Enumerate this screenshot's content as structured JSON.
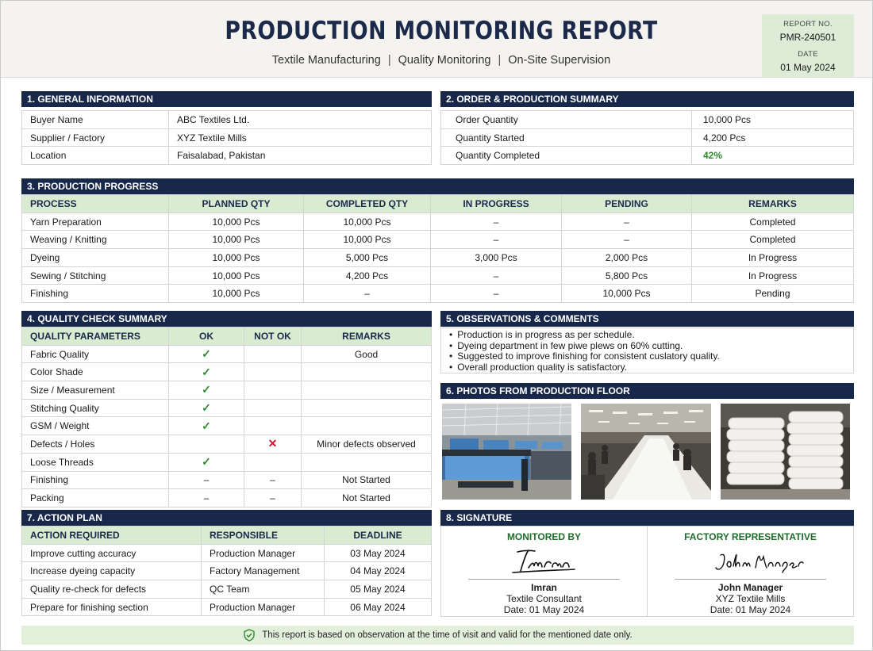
{
  "header": {
    "title": "PRODUCTION MONITORING REPORT",
    "subtitle_parts": [
      "Textile Manufacturing",
      "Quality Monitoring",
      "On-Site Supervision"
    ],
    "separator": "|",
    "report_no_label": "REPORT NO.",
    "report_no": "PMR-240501",
    "date_label": "DATE",
    "date": "01 May 2024"
  },
  "general": {
    "title": "1. GENERAL INFORMATION",
    "rows": [
      {
        "label": "Buyer Name",
        "value": "ABC Textiles Ltd."
      },
      {
        "label": "Supplier / Factory",
        "value": "XYZ Textile Mills"
      },
      {
        "label": "Location",
        "value": "Faisalabad, Pakistan"
      }
    ]
  },
  "order": {
    "title": "2. ORDER & PRODUCTION SUMMARY",
    "rows": [
      {
        "label": "Order Quantity",
        "value": "10,000 Pcs"
      },
      {
        "label": "Quantity Started",
        "value": "4,200 Pcs"
      },
      {
        "label": "Quantity Completed",
        "value": "42%"
      }
    ]
  },
  "progress": {
    "title": "3. PRODUCTION PROGRESS",
    "columns": [
      "PROCESS",
      "PLANNED QTY",
      "COMPLETED QTY",
      "IN PROGRESS",
      "PENDING",
      "REMARKS"
    ],
    "rows": [
      [
        "Yarn Preparation",
        "10,000 Pcs",
        "10,000 Pcs",
        "–",
        "–",
        "Completed"
      ],
      [
        "Weaving / Knitting",
        "10,000 Pcs",
        "10,000 Pcs",
        "–",
        "–",
        "Completed"
      ],
      [
        "Dyeing",
        "10,000 Pcs",
        "5,000 Pcs",
        "3,000 Pcs",
        "2,000 Pcs",
        "In Progress"
      ],
      [
        "Sewing / Stitching",
        "10,000 Pcs",
        "4,200 Pcs",
        "–",
        "5,800 Pcs",
        "In Progress"
      ],
      [
        "Finishing",
        "10,000 Pcs",
        "–",
        "–",
        "10,000 Pcs",
        "Pending"
      ]
    ]
  },
  "quality": {
    "title": "4. QUALITY CHECK SUMMARY",
    "columns": [
      "QUALITY PARAMETERS",
      "OK",
      "NOT OK",
      "REMARKS"
    ],
    "check_mark": "✓",
    "cross_mark": "✕",
    "rows": [
      [
        "Fabric Quality",
        "✓",
        "",
        "Good"
      ],
      [
        "Color Shade",
        "✓",
        "",
        ""
      ],
      [
        "Size / Measurement",
        "✓",
        "",
        ""
      ],
      [
        "Stitching Quality",
        "✓",
        "",
        ""
      ],
      [
        "GSM / Weight",
        "✓",
        "",
        ""
      ],
      [
        "Defects / Holes",
        "",
        "✕",
        "Minor defects observed"
      ],
      [
        "Loose Threads",
        "✓",
        "",
        ""
      ],
      [
        "Finishing",
        "–",
        "–",
        "Not Started"
      ],
      [
        "Packing",
        "–",
        "–",
        "Not Started"
      ]
    ]
  },
  "observations": {
    "title": "5. OBSERVATIONS & COMMENTS",
    "items": [
      "Production is in progress as per schedule.",
      "Dyeing department in few piwe plews on 60% cutting.",
      "Suggested to improve finishing for consistent cuslatory quality.",
      "Overall production quality is satisfactory."
    ]
  },
  "photos": {
    "title": "6. PHOTOS FROM PRODUCTION FLOOR",
    "items": [
      {
        "name": "weaving-looms-photo"
      },
      {
        "name": "cutting-tables-photo"
      },
      {
        "name": "folded-fabric-stack-photo"
      }
    ]
  },
  "action": {
    "title": "7. ACTION PLAN",
    "columns": [
      "ACTION REQUIRED",
      "RESPONSIBLE",
      "DEADLINE"
    ],
    "rows": [
      [
        "Improve cutting accuracy",
        "Production Manager",
        "03 May 2024"
      ],
      [
        "Increase dyeing capacity",
        "Factory Management",
        "04 May 2024"
      ],
      [
        "Quality re-check for defects",
        "QC Team",
        "05 May 2024"
      ],
      [
        "Prepare for finishing section",
        "Production Manager",
        "06 May 2024"
      ]
    ]
  },
  "signature": {
    "title": "8. SIGNATURE",
    "monitored": {
      "heading": "MONITORED BY",
      "script": "Imran",
      "name": "Imran",
      "role": "Textile Consultant",
      "date": "Date: 01 May 2024"
    },
    "factory": {
      "heading": "FACTORY REPRESENTATIVE",
      "script": "John Manager",
      "name": "John Manager",
      "role": "XYZ Textile Mills",
      "date": "Date: 01 May 2024"
    }
  },
  "footer": {
    "icon": "shield-check-icon",
    "text": "This report is based on observation at the time of visit and valid for the mentioned date only."
  },
  "colors": {
    "navy": "#17284a",
    "light_green": "#d9ecd2",
    "accent_green": "#2e8b2e",
    "cross_red": "#c8182c"
  }
}
